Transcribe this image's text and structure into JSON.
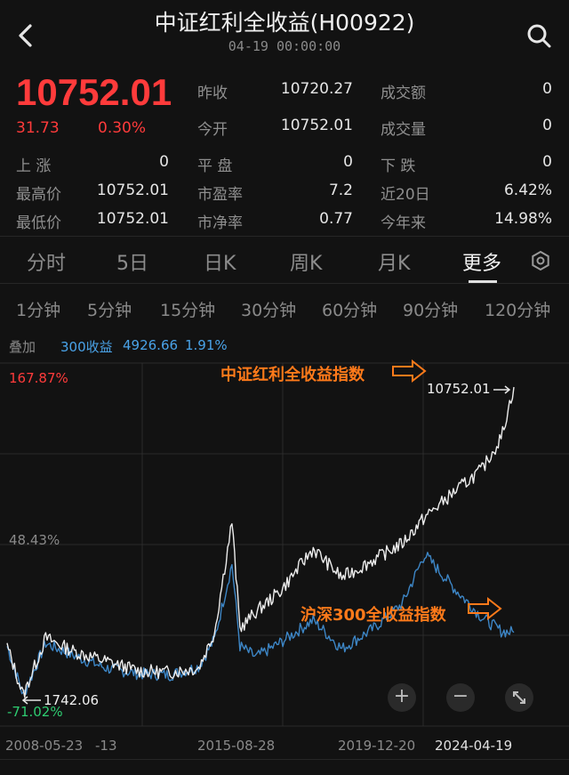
{
  "header": {
    "title": "中证红利全收益(H00922)",
    "timestamp": "04-19 00:00:00",
    "back_icon": "chevron-left-icon",
    "search_icon": "search-icon"
  },
  "quote": {
    "price": "10752.01",
    "change": "31.73",
    "change_pct": "0.30%",
    "stats": [
      {
        "label": "昨收",
        "value": "10720.27"
      },
      {
        "label": "成交额",
        "value": "0"
      },
      {
        "label": "今开",
        "value": "10752.01"
      },
      {
        "label": "成交量",
        "value": "0"
      },
      {
        "label": "上 涨",
        "value": "0"
      },
      {
        "label": "平 盘",
        "value": "0"
      },
      {
        "label": "下 跌",
        "value": "0"
      },
      {
        "label": "最高价",
        "value": "10752.01"
      },
      {
        "label": "市盈率",
        "value": "7.2"
      },
      {
        "label": "近20日",
        "value": "6.42%"
      },
      {
        "label": "最低价",
        "value": "10752.01"
      },
      {
        "label": "市净率",
        "value": "0.77"
      },
      {
        "label": "今年来",
        "value": "14.98%"
      }
    ],
    "colors": {
      "up": "#ff3b3b",
      "down": "#2ecc71"
    }
  },
  "tabs": [
    "分时",
    "5日",
    "日K",
    "周K",
    "月K",
    "更多"
  ],
  "active_tab": "更多",
  "minute_options": [
    "1分钟",
    "5分钟",
    "15分钟",
    "30分钟",
    "60分钟",
    "90分钟",
    "120分钟"
  ],
  "overlay": {
    "label": "叠加",
    "series": "300收益",
    "value": "4926.66",
    "pct": "1.91%"
  },
  "chart": {
    "y_top_label": "167.87%",
    "y_mid_label": "48.43%",
    "y_bottom_label": "-71.02%",
    "dates": [
      "2008-05-23",
      "-13",
      "2015-08-28",
      "2019-12-20",
      "2024-04-19"
    ],
    "annotation_top": "中证红利全收益指数",
    "annotation_bottom": "沪深300全收益指数",
    "max_label": "10752.01",
    "min_label": "1742.06",
    "zoom_in": "+",
    "zoom_out": "−",
    "expand_icon": "expand-icon"
  },
  "chart_data": {
    "type": "line",
    "x_range": [
      "2008-05-23",
      "2024-04-19"
    ],
    "ylim": [
      -71.02,
      167.87
    ],
    "y_unit": "%",
    "series": [
      {
        "name": "中证红利全收益指数",
        "color": "#e8e8e8",
        "x": [
          2008.39,
          2008.9,
          2009.6,
          2010.5,
          2011.5,
          2012.5,
          2013.5,
          2014.4,
          2014.9,
          2015.45,
          2015.7,
          2016.2,
          2017.0,
          2018.0,
          2018.9,
          2019.9,
          2020.8,
          2021.5,
          2022.4,
          2023.3,
          2023.9,
          2024.3
        ],
        "y": [
          -27,
          -63,
          -21,
          -31,
          -38,
          -45,
          -46,
          -43,
          -17,
          64,
          -14,
          -2,
          14,
          44,
          23,
          36,
          48,
          67,
          85,
          102,
          125,
          162
        ]
      },
      {
        "name": "沪深300全收益指数",
        "color": "#3d86c6",
        "x": [
          2008.39,
          2008.9,
          2009.6,
          2010.5,
          2011.5,
          2012.5,
          2013.5,
          2014.4,
          2014.9,
          2015.45,
          2015.7,
          2016.2,
          2017.0,
          2018.0,
          2018.9,
          2019.9,
          2020.8,
          2021.5,
          2022.4,
          2023.3,
          2023.9,
          2024.3
        ],
        "y": [
          -27,
          -63,
          -25,
          -34,
          -43,
          -47,
          -48,
          -42,
          -22,
          33,
          -27,
          -35,
          -24,
          -8,
          -29,
          -14,
          4,
          40,
          16,
          -6,
          -16,
          -17
        ]
      }
    ]
  }
}
